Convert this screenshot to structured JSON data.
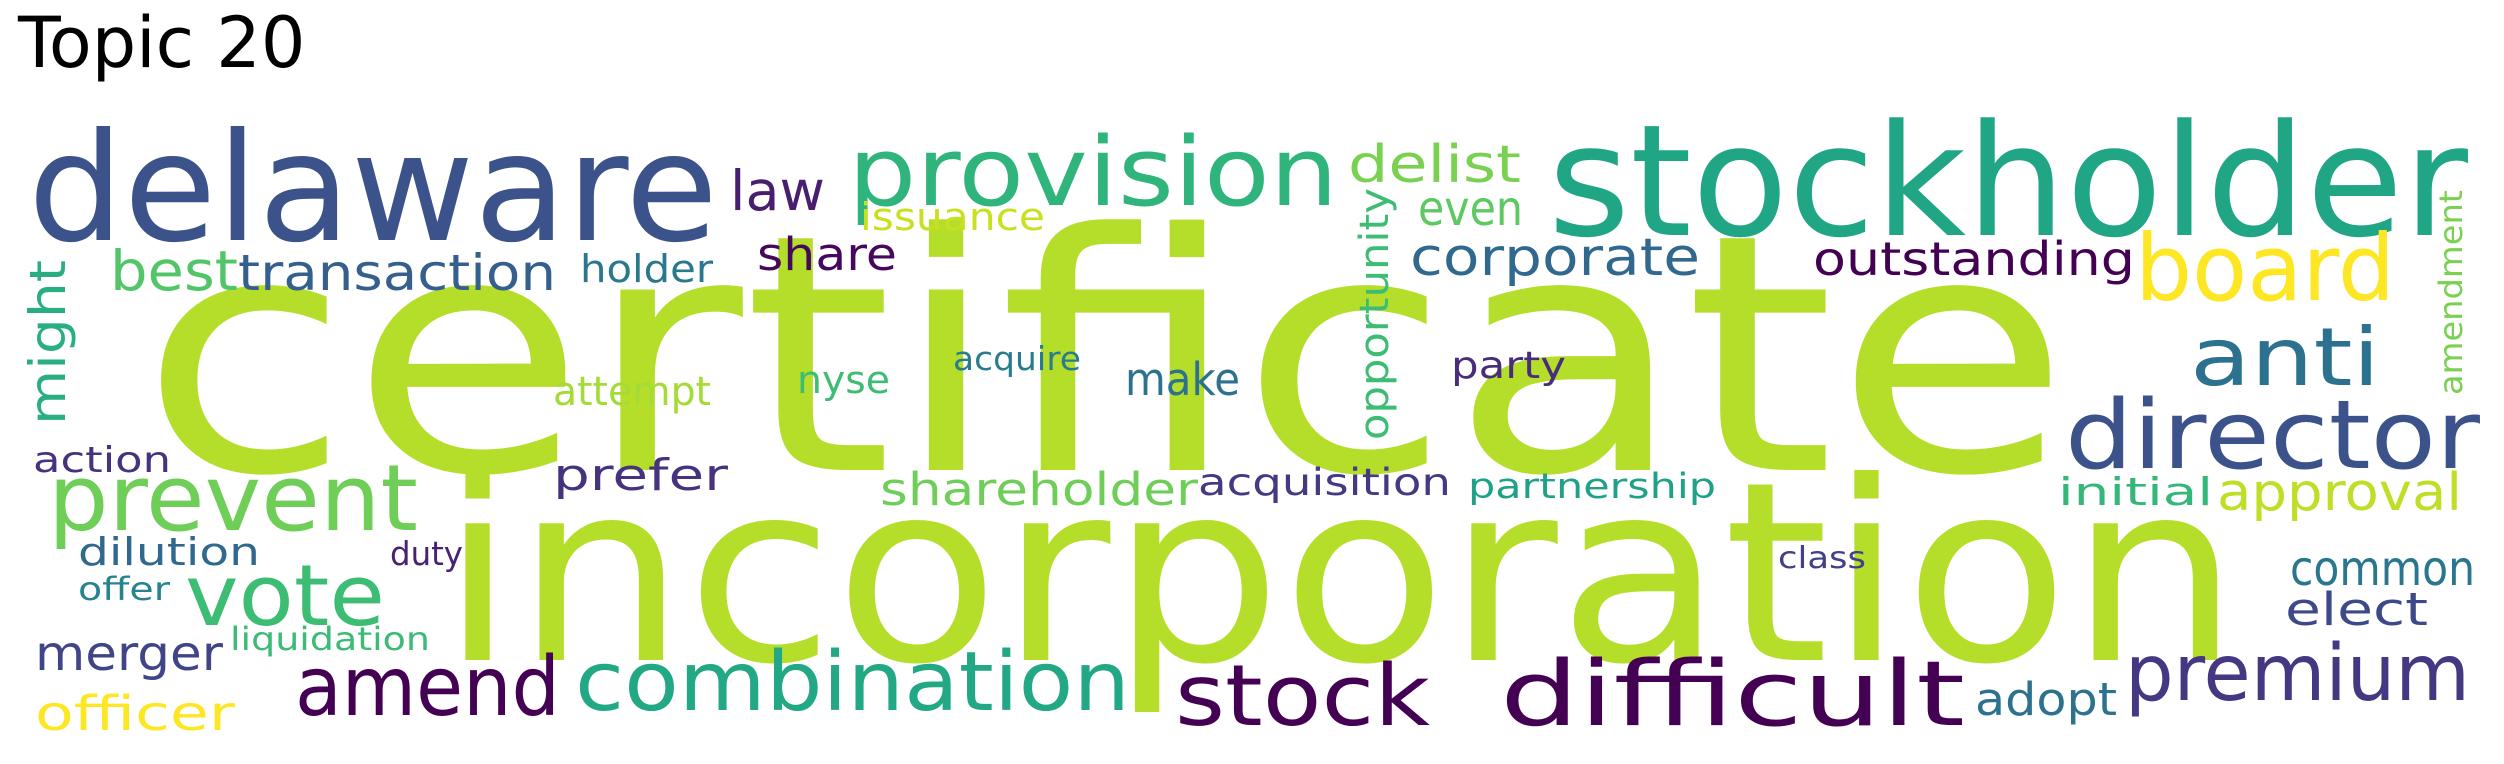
{
  "title": "Topic 20",
  "words": [
    {
      "text": "certificate",
      "color": "#b5de2b"
    },
    {
      "text": "incorporation",
      "color": "#b5de2b"
    },
    {
      "text": "delaware",
      "color": "#3b528b"
    },
    {
      "text": "stockholder",
      "color": "#21a685"
    },
    {
      "text": "provision",
      "color": "#2fb47c"
    },
    {
      "text": "board",
      "color": "#fde725"
    },
    {
      "text": "director",
      "color": "#3b528b"
    },
    {
      "text": "anti",
      "color": "#2c728e"
    },
    {
      "text": "prevent",
      "color": "#6ece58"
    },
    {
      "text": "vote",
      "color": "#3dbc74"
    },
    {
      "text": "amend",
      "color": "#440154"
    },
    {
      "text": "combination",
      "color": "#22a884"
    },
    {
      "text": "stock",
      "color": "#440154"
    },
    {
      "text": "difficult",
      "color": "#440154"
    },
    {
      "text": "premium",
      "color": "#453781"
    },
    {
      "text": "law",
      "color": "#481f70"
    },
    {
      "text": "delist",
      "color": "#7ad151"
    },
    {
      "text": "even",
      "color": "#5ec962"
    },
    {
      "text": "issuance",
      "color": "#c8e020"
    },
    {
      "text": "best",
      "color": "#52c569"
    },
    {
      "text": "transaction",
      "color": "#355f8d"
    },
    {
      "text": "holder",
      "color": "#2a788e"
    },
    {
      "text": "share",
      "color": "#46085c"
    },
    {
      "text": "corporate",
      "color": "#31688e"
    },
    {
      "text": "outstanding",
      "color": "#440154"
    },
    {
      "text": "might",
      "color": "#29af7f"
    },
    {
      "text": "opportunity",
      "color": "#3dbc74"
    },
    {
      "text": "amendment",
      "color": "#7ad151"
    },
    {
      "text": "acquire",
      "color": "#287c8e"
    },
    {
      "text": "nyse",
      "color": "#3fbc73"
    },
    {
      "text": "attempt",
      "color": "#a5db36"
    },
    {
      "text": "make",
      "color": "#2c728e"
    },
    {
      "text": "party",
      "color": "#472d7b"
    },
    {
      "text": "action",
      "color": "#46327e"
    },
    {
      "text": "prefer",
      "color": "#46327e"
    },
    {
      "text": "shareholder",
      "color": "#6ece58"
    },
    {
      "text": "acquisition",
      "color": "#443983"
    },
    {
      "text": "partnership",
      "color": "#1fa187"
    },
    {
      "text": "initial",
      "color": "#35b779"
    },
    {
      "text": "approval",
      "color": "#bddf26"
    },
    {
      "text": "dilution",
      "color": "#31688e"
    },
    {
      "text": "duty",
      "color": "#482173"
    },
    {
      "text": "offer",
      "color": "#25848e"
    },
    {
      "text": "class",
      "color": "#424086"
    },
    {
      "text": "common",
      "color": "#2a768e"
    },
    {
      "text": "elect",
      "color": "#3e4989"
    },
    {
      "text": "liquidation",
      "color": "#3bbb75"
    },
    {
      "text": "merger",
      "color": "#414487"
    },
    {
      "text": "officer",
      "color": "#fde725"
    },
    {
      "text": "adopt",
      "color": "#2c728e"
    }
  ]
}
